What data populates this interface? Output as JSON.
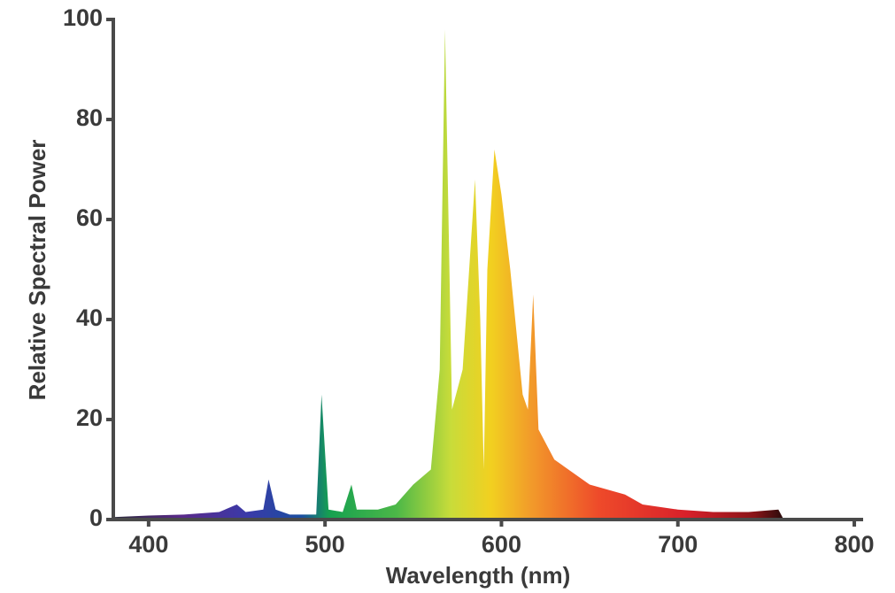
{
  "chart_data": {
    "type": "area",
    "xlabel": "Wavelength (nm)",
    "ylabel": "Relative Spectral Power",
    "x": [
      380,
      400,
      420,
      440,
      450,
      455,
      465,
      468,
      472,
      480,
      495,
      498,
      502,
      510,
      515,
      518,
      530,
      540,
      550,
      560,
      565,
      568,
      572,
      578,
      585,
      588,
      590,
      592,
      596,
      600,
      605,
      612,
      615,
      618,
      621,
      630,
      650,
      670,
      680,
      700,
      720,
      740,
      757,
      760
    ],
    "values": [
      0.5,
      0.8,
      1,
      1.5,
      3,
      1.5,
      2,
      8,
      2,
      1,
      1,
      25,
      2,
      1.5,
      7,
      2,
      2,
      3,
      7,
      10,
      30,
      98,
      22,
      30,
      68,
      40,
      10,
      50,
      74,
      65,
      50,
      25,
      22,
      45,
      18,
      12,
      7,
      5,
      3,
      2,
      1.5,
      1.5,
      2,
      0
    ],
    "xlim": [
      380,
      805
    ],
    "ylim": [
      0,
      100
    ],
    "xticks": [
      400,
      500,
      600,
      700,
      800
    ],
    "yticks": [
      0,
      20,
      40,
      60,
      80,
      100
    ]
  }
}
